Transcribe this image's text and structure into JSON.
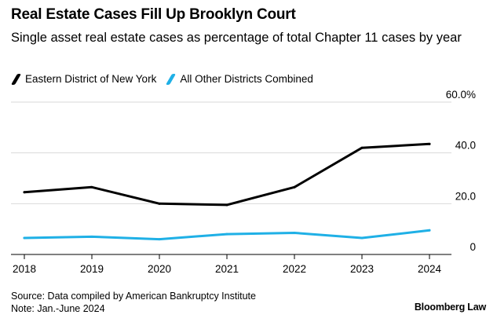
{
  "header": {
    "title": "Real Estate Cases Fill Up Brooklyn Court",
    "subtitle": "Single asset real estate cases as percentage of total Chapter 11 cases by year"
  },
  "legend": [
    {
      "label": "Eastern District of New York",
      "color": "#000000"
    },
    {
      "label": "All Other Districts Combined",
      "color": "#1fb0e6"
    }
  ],
  "footer": {
    "source": "Source: Data compiled by American Bankruptcy Institute",
    "note": "Note: Jan.-June 2024",
    "brand": "Bloomberg Law"
  },
  "chart_data": {
    "type": "line",
    "title": "Real Estate Cases Fill Up Brooklyn Court",
    "subtitle": "Single asset real estate cases as percentage of total Chapter 11 cases by year",
    "xlabel": "",
    "ylabel": "",
    "x": [
      2018,
      2019,
      2020,
      2021,
      2022,
      2023,
      2024
    ],
    "x_tick_labels": [
      "2018",
      "2019",
      "2020",
      "2021",
      "2022",
      "2023",
      "2024"
    ],
    "ylim": [
      0,
      60
    ],
    "y_ticks": [
      0,
      20,
      40,
      60
    ],
    "y_tick_labels": [
      "0",
      "20.0",
      "40.0",
      "60.0%"
    ],
    "y_axis_side": "right",
    "grid": "horizontal",
    "series": [
      {
        "name": "Eastern District of New York",
        "color": "#000000",
        "values": [
          24.5,
          26.5,
          20.0,
          19.5,
          26.5,
          42.0,
          43.5
        ]
      },
      {
        "name": "All Other Districts Combined",
        "color": "#1fb0e6",
        "values": [
          6.5,
          7.0,
          6.0,
          8.0,
          8.5,
          6.5,
          9.5
        ]
      }
    ]
  }
}
